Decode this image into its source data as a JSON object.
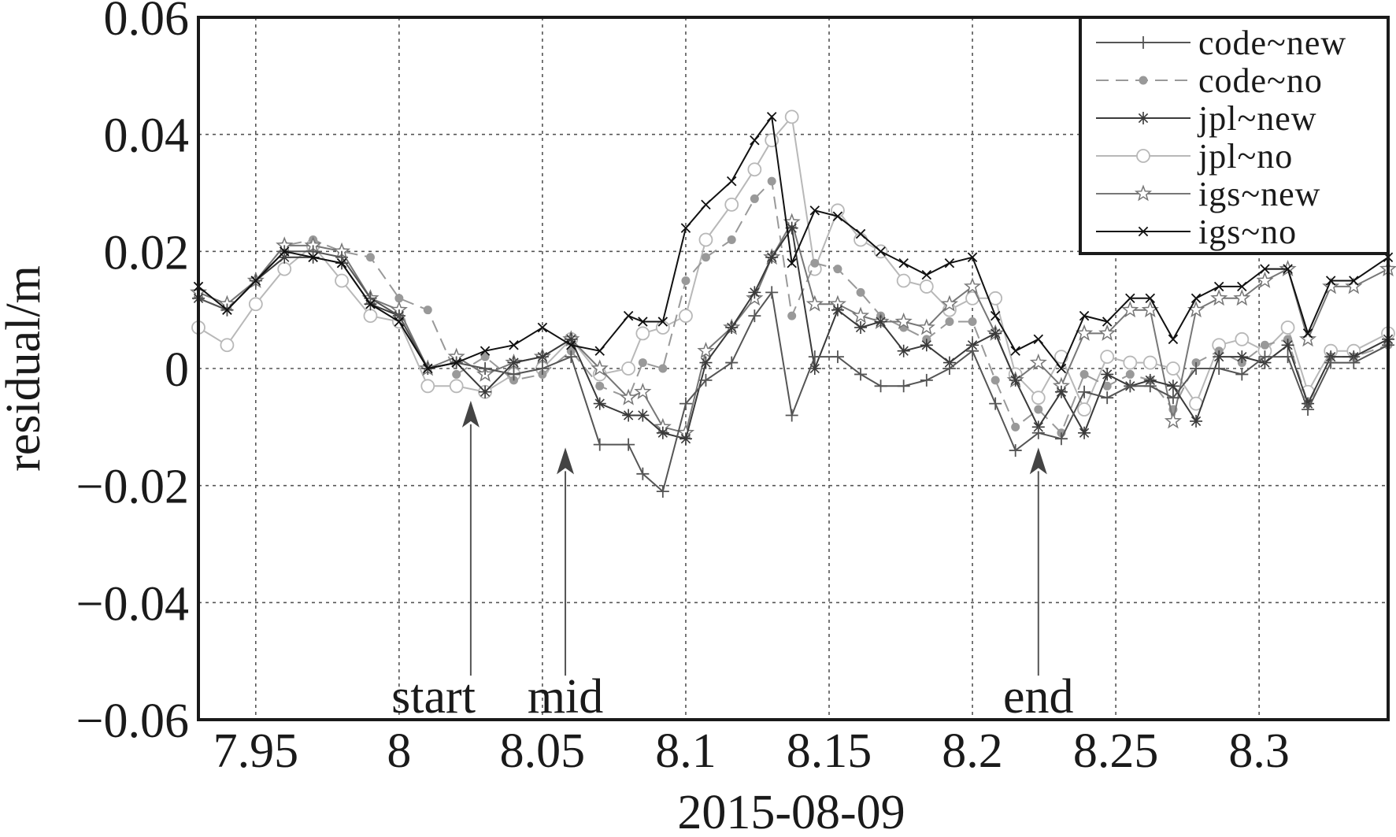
{
  "chart_data": {
    "type": "line",
    "xlabel": "2015-08-09",
    "ylabel": "residual/m",
    "xlim": [
      7.93,
      8.345
    ],
    "ylim": [
      -0.06,
      0.06
    ],
    "x_ticks": [
      7.95,
      8,
      8.05,
      8.1,
      8.15,
      8.2,
      8.25,
      8.3
    ],
    "x_tick_labels": [
      "7.95",
      "8",
      "8.05",
      "8.1",
      "8.15",
      "8.2",
      "8.25",
      "8.3"
    ],
    "y_ticks": [
      -0.06,
      -0.04,
      -0.02,
      0,
      0.02,
      0.04,
      0.06
    ],
    "y_tick_labels": [
      "−0.06",
      "−0.04",
      "−0.02",
      "0",
      "0.02",
      "0.04",
      "0.06"
    ],
    "grid": true,
    "legend_position": "top-right",
    "x": [
      7.93,
      7.94,
      7.95,
      7.96,
      7.97,
      7.98,
      7.99,
      8.0,
      8.01,
      8.02,
      8.03,
      8.04,
      8.05,
      8.06,
      8.07,
      8.08,
      8.085,
      8.092,
      8.1,
      8.107,
      8.116,
      8.124,
      8.13,
      8.137,
      8.145,
      8.153,
      8.161,
      8.168,
      8.176,
      8.184,
      8.192,
      8.2,
      8.208,
      8.215,
      8.223,
      8.231,
      8.239,
      8.247,
      8.255,
      8.262,
      8.27,
      8.278,
      8.286,
      8.294,
      8.302,
      8.31,
      8.317,
      8.325,
      8.333,
      8.345
    ],
    "series": [
      {
        "name": "code~new",
        "color": "#555555",
        "marker": "plus",
        "dash": "solid",
        "values": [
          0.012,
          0.01,
          0.015,
          0.02,
          0.02,
          0.019,
          0.012,
          0.009,
          0.0,
          0.001,
          0.0,
          -0.001,
          0.0,
          0.002,
          -0.013,
          -0.013,
          -0.018,
          -0.021,
          -0.006,
          -0.002,
          0.001,
          0.009,
          0.013,
          -0.008,
          0.002,
          0.002,
          -0.001,
          -0.003,
          -0.003,
          -0.002,
          0.0,
          0.003,
          -0.006,
          -0.014,
          -0.011,
          -0.012,
          -0.004,
          -0.005,
          -0.003,
          -0.003,
          -0.005,
          0.0,
          0.0,
          -0.001,
          0.002,
          0.002,
          -0.007,
          0.001,
          0.001,
          0.004
        ]
      },
      {
        "name": "code~no",
        "color": "#999999",
        "marker": "dot",
        "dash": "dashed",
        "values": [
          0.013,
          0.011,
          0.015,
          0.021,
          0.022,
          0.02,
          0.019,
          0.012,
          0.01,
          -0.001,
          0.002,
          -0.002,
          -0.001,
          0.003,
          -0.003,
          -0.005,
          0.001,
          0.0,
          0.015,
          0.019,
          0.022,
          0.029,
          0.032,
          0.009,
          0.018,
          0.017,
          0.013,
          0.009,
          0.007,
          0.005,
          0.008,
          0.008,
          -0.002,
          -0.01,
          -0.007,
          -0.011,
          -0.001,
          -0.003,
          -0.001,
          -0.002,
          -0.007,
          0.001,
          0.003,
          0.001,
          0.004,
          0.005,
          -0.006,
          0.002,
          0.002,
          0.004
        ]
      },
      {
        "name": "jpl~new",
        "color": "#3a3a3a",
        "marker": "asterisk",
        "dash": "solid",
        "values": [
          0.012,
          0.01,
          0.015,
          0.019,
          0.019,
          0.018,
          0.011,
          0.009,
          0.0,
          0.001,
          -0.004,
          0.001,
          0.002,
          0.005,
          -0.006,
          -0.008,
          -0.008,
          -0.011,
          -0.012,
          0.001,
          0.007,
          0.013,
          0.019,
          0.024,
          0.0,
          0.01,
          0.007,
          0.008,
          0.003,
          0.004,
          0.001,
          0.004,
          0.006,
          -0.002,
          -0.01,
          -0.004,
          -0.011,
          -0.001,
          -0.003,
          -0.002,
          -0.003,
          -0.009,
          0.002,
          0.002,
          0.001,
          0.004,
          -0.006,
          0.002,
          0.002,
          0.005
        ]
      },
      {
        "name": "jpl~no",
        "color": "#b8b8b8",
        "marker": "circle",
        "dash": "solid",
        "values": [
          0.007,
          0.004,
          0.011,
          0.017,
          0.021,
          0.015,
          0.009,
          0.008,
          -0.003,
          -0.003,
          -0.004,
          -0.001,
          0.0,
          0.005,
          -0.001,
          0.0,
          0.006,
          0.007,
          0.009,
          0.022,
          0.028,
          0.034,
          0.039,
          0.043,
          0.017,
          0.027,
          0.022,
          0.02,
          0.015,
          0.014,
          0.01,
          0.012,
          0.012,
          -0.001,
          -0.005,
          0.002,
          -0.007,
          0.002,
          0.001,
          0.001,
          0.0,
          -0.006,
          0.004,
          0.005,
          0.003,
          0.007,
          -0.004,
          0.003,
          0.003,
          0.006
        ]
      },
      {
        "name": "igs~new",
        "color": "#777777",
        "marker": "star",
        "dash": "solid",
        "values": [
          0.013,
          0.011,
          0.015,
          0.021,
          0.021,
          0.02,
          0.012,
          0.01,
          0.0,
          0.002,
          -0.001,
          0.001,
          0.002,
          0.005,
          0.0,
          -0.005,
          -0.004,
          -0.01,
          -0.011,
          0.003,
          0.007,
          0.012,
          0.019,
          0.025,
          0.011,
          0.011,
          0.009,
          0.008,
          0.008,
          0.007,
          0.011,
          0.014,
          0.006,
          -0.002,
          0.001,
          -0.003,
          0.006,
          0.006,
          0.01,
          0.01,
          -0.009,
          0.01,
          0.012,
          0.012,
          0.015,
          0.017,
          0.005,
          0.014,
          0.014,
          0.017
        ]
      },
      {
        "name": "igs~no",
        "color": "#111111",
        "marker": "cross",
        "dash": "solid",
        "values": [
          0.014,
          0.01,
          0.015,
          0.02,
          0.019,
          0.018,
          0.011,
          0.008,
          0.0,
          0.001,
          0.003,
          0.004,
          0.007,
          0.004,
          0.003,
          0.009,
          0.008,
          0.008,
          0.024,
          0.028,
          0.032,
          0.039,
          0.043,
          0.018,
          0.027,
          0.026,
          0.023,
          0.02,
          0.018,
          0.016,
          0.018,
          0.019,
          0.009,
          0.003,
          0.005,
          0.0,
          0.009,
          0.008,
          0.012,
          0.012,
          0.005,
          0.012,
          0.014,
          0.014,
          0.017,
          0.017,
          0.006,
          0.015,
          0.015,
          0.019
        ]
      }
    ],
    "annotations": [
      {
        "label": "start",
        "x": 8.025,
        "y": -0.0055,
        "text_x": 8.012
      },
      {
        "label": "mid",
        "x": 8.058,
        "y": -0.0135,
        "text_x": 8.058
      },
      {
        "label": "end",
        "x": 8.223,
        "y": -0.0135,
        "text_x": 8.223
      }
    ]
  }
}
